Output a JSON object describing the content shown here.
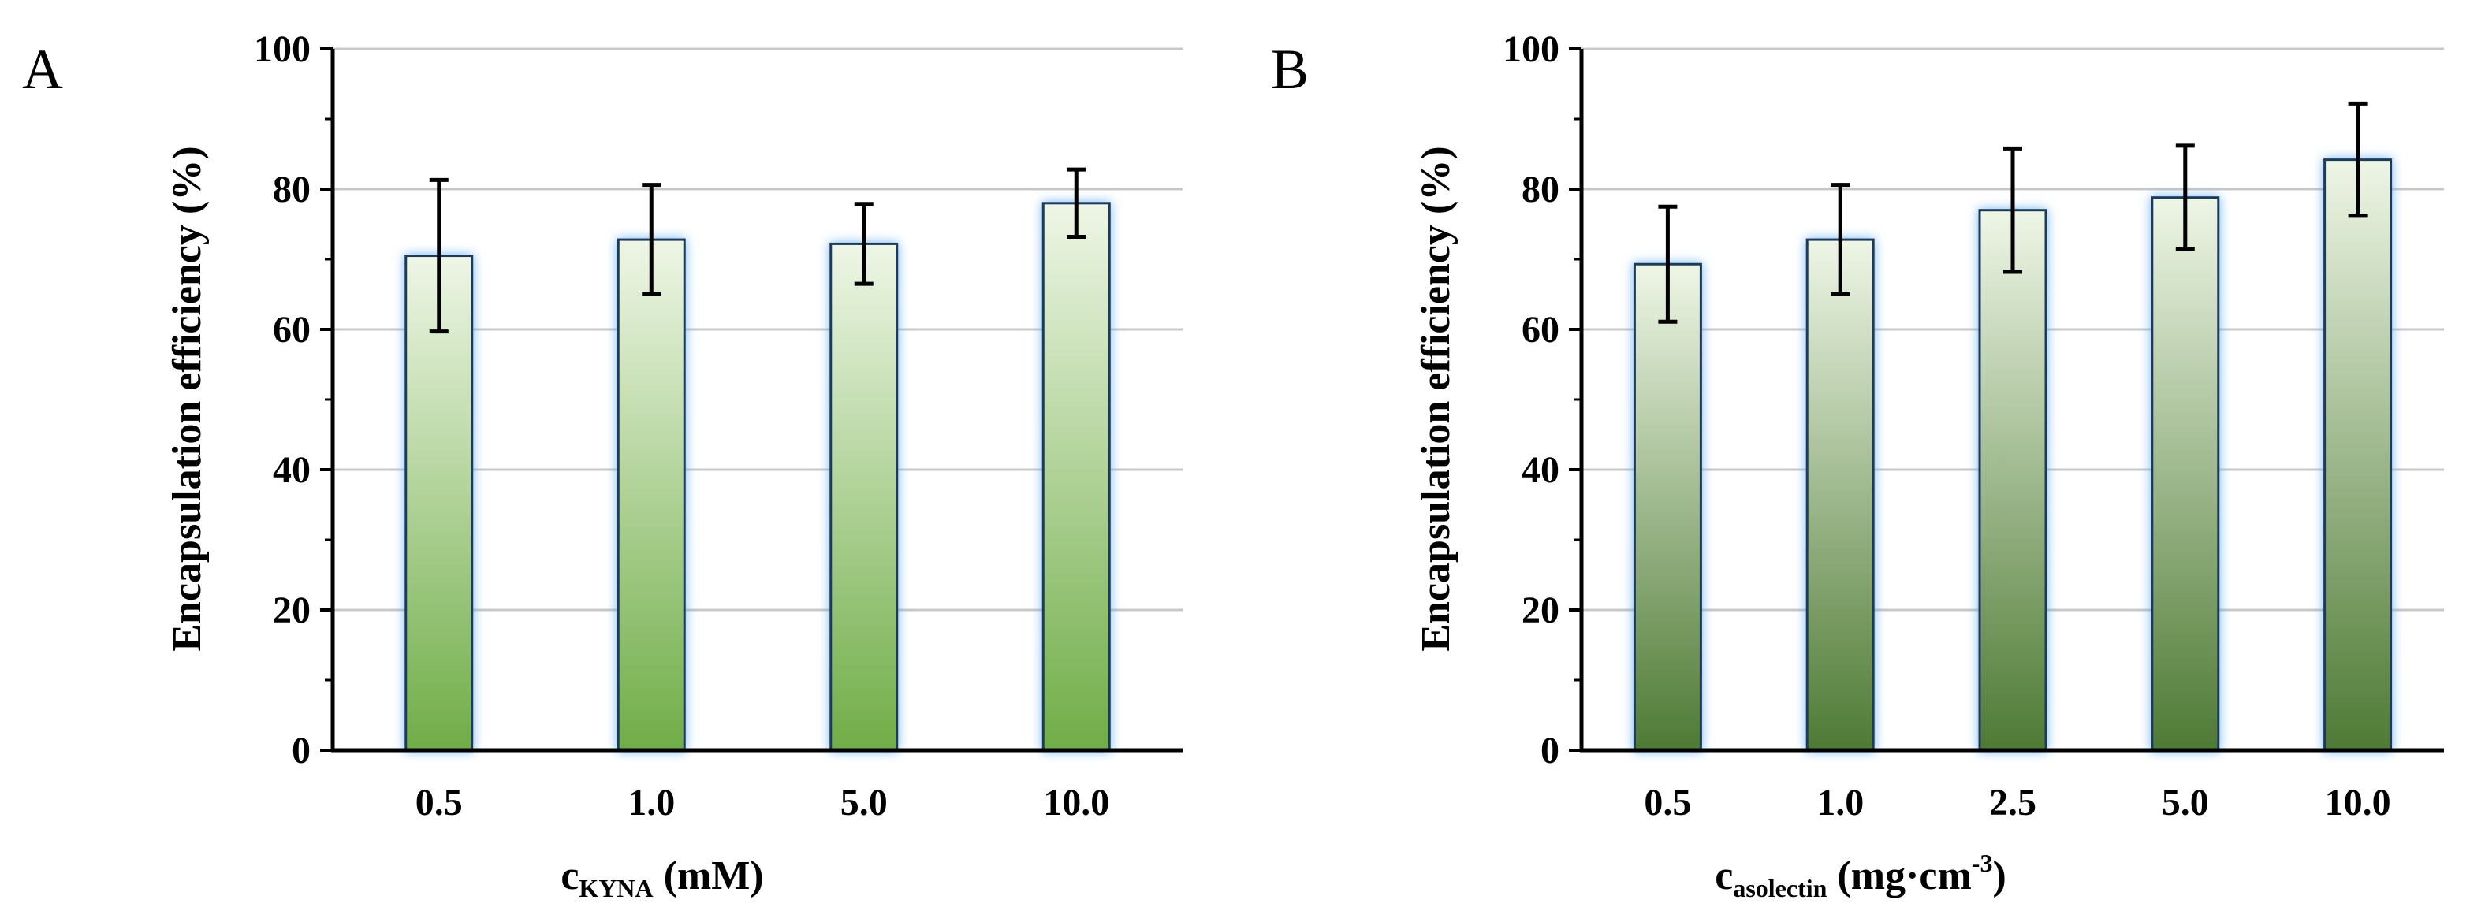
{
  "chart_data": [
    {
      "type": "bar",
      "panel_label": "A",
      "categories": [
        "0.5",
        "1.0",
        "5.0",
        "10.0"
      ],
      "values": [
        70.5,
        72.8,
        72.2,
        78.0
      ],
      "errors": [
        10.8,
        7.8,
        5.7,
        4.8
      ],
      "xlabel": "c",
      "xlabel_sub": "KYNA",
      "xlabel_unit": " (mM)",
      "ylabel": "Encapsulation efficiency (%)",
      "ylim": [
        0,
        100
      ],
      "yticks": [
        "0",
        "20",
        "40",
        "60",
        "80",
        "100"
      ],
      "grid": true,
      "bar_color_top": "#eef6e6",
      "bar_color_bottom": "#70ad47"
    },
    {
      "type": "bar",
      "panel_label": "B",
      "categories": [
        "0.5",
        "1.0",
        "2.5",
        "5.0",
        "10.0"
      ],
      "values": [
        69.3,
        72.8,
        77.0,
        78.8,
        84.2
      ],
      "errors": [
        8.2,
        7.8,
        8.8,
        7.4,
        8.0
      ],
      "xlabel": "c",
      "xlabel_sub": "asolectin",
      "xlabel_unit": " (mg·cm",
      "xlabel_sup": "-3",
      "xlabel_close": ")",
      "ylabel": "Encapsulation efficiency (%)",
      "ylim": [
        0,
        100
      ],
      "yticks": [
        "0",
        "20",
        "40",
        "60",
        "80",
        "100"
      ],
      "grid": true,
      "bar_color_top": "#eef6e6",
      "bar_color_bottom": "#4e7a34"
    }
  ]
}
